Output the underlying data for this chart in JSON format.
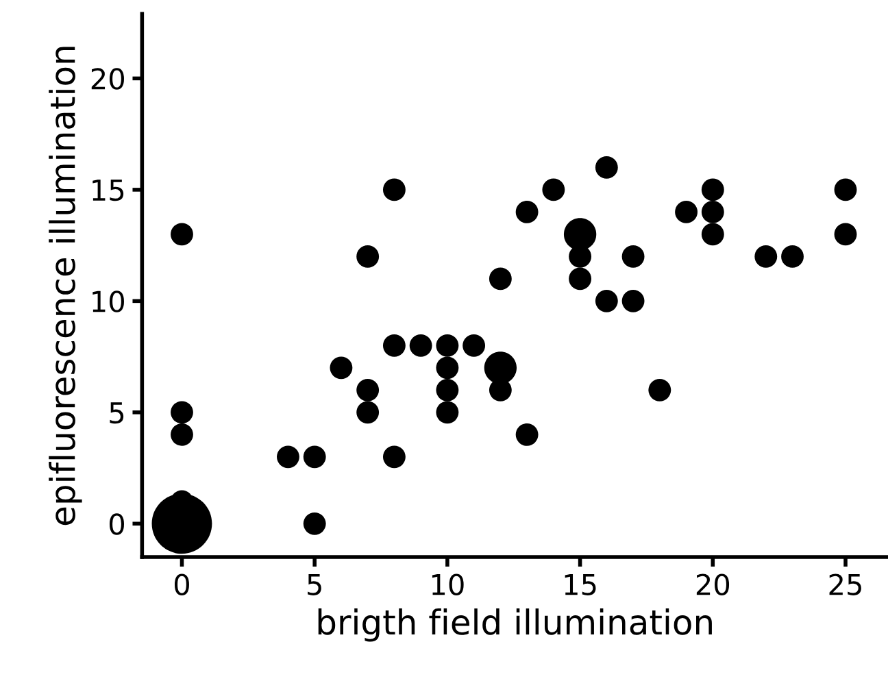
{
  "chart_data": {
    "type": "bubble",
    "xlabel": "brigth field illumination",
    "ylabel": "epifluorescence illumination",
    "x": [
      0,
      0,
      0,
      0,
      0,
      4,
      5,
      5,
      6,
      7,
      7,
      7,
      8,
      8,
      8,
      9,
      10,
      10,
      10,
      10,
      11,
      12,
      12,
      12,
      13,
      13,
      14,
      15,
      15,
      15,
      16,
      16,
      17,
      17,
      18,
      19,
      20,
      20,
      20,
      22,
      23,
      25,
      25
    ],
    "values": [
      0,
      1,
      4,
      5,
      13,
      3,
      3,
      0,
      7,
      12,
      6,
      5,
      15,
      8,
      3,
      8,
      8,
      7,
      6,
      5,
      8,
      11,
      7,
      6,
      14,
      4,
      15,
      13,
      12,
      11,
      16,
      10,
      12,
      10,
      6,
      14,
      15,
      14,
      13,
      12,
      12,
      15,
      13
    ],
    "sizes": [
      1,
      0.14,
      0.14,
      0.14,
      0.14,
      0.14,
      0.14,
      0.14,
      0.14,
      0.14,
      0.14,
      0.14,
      0.14,
      0.14,
      0.14,
      0.14,
      0.14,
      0.14,
      0.14,
      0.14,
      0.14,
      0.14,
      0.29,
      0.14,
      0.14,
      0.14,
      0.14,
      0.29,
      0.14,
      0.14,
      0.14,
      0.14,
      0.14,
      0.14,
      0.14,
      0.14,
      0.14,
      0.14,
      0.14,
      0.14,
      0.14,
      0.14,
      0.14
    ],
    "color": "#000000",
    "xlim": [
      -1.5,
      26.6
    ],
    "ylim": [
      -1.5,
      22.9
    ],
    "xticks": [
      0,
      5,
      10,
      15,
      20,
      25
    ],
    "yticks": [
      0,
      5,
      10,
      15,
      20
    ],
    "grid": false,
    "legend": false
  }
}
